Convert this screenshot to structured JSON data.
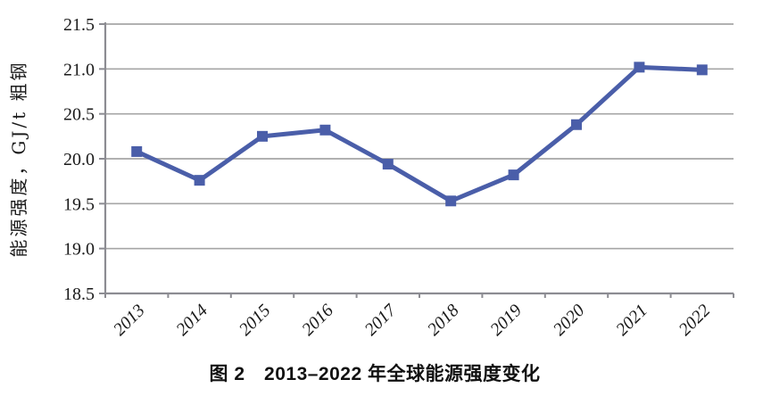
{
  "figure": {
    "caption": "图 2　2013–2022 年全球能源强度变化"
  },
  "chart_data": {
    "type": "line",
    "title": "图 2　2013–2022 年全球能源强度变化",
    "categories": [
      "2013",
      "2014",
      "2015",
      "2016",
      "2017",
      "2018",
      "2019",
      "2020",
      "2021",
      "2022"
    ],
    "series": [
      {
        "name": "能源强度",
        "values": [
          20.08,
          19.76,
          20.25,
          20.32,
          19.94,
          19.53,
          19.82,
          20.38,
          21.02,
          20.99
        ]
      }
    ],
    "xlabel": "",
    "ylabel": "能源强度，GJ/t 粗钢",
    "ylim": [
      18.5,
      21.5
    ],
    "ytick_step": 0.5,
    "y_tick_labels": [
      "18.5",
      "19.0",
      "19.5",
      "20.0",
      "20.5",
      "21.0",
      "21.5"
    ],
    "grid": "horizontal",
    "legend": "none",
    "line_color": "#4A5EA9",
    "marker": "square",
    "grid_color": "#A6A6A6",
    "axis_color": "#8C8C92",
    "tick_label_color": "#1a1a1a"
  }
}
